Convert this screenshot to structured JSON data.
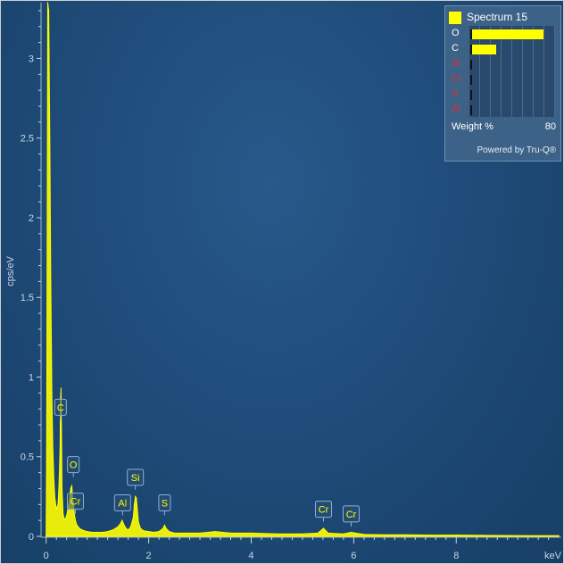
{
  "chart_data": {
    "type": "line",
    "xlabel": "keV",
    "ylabel": "cps/eV",
    "xlim": [
      -0.1,
      10.05
    ],
    "ylim": [
      0,
      3.35
    ],
    "x_ticks": [
      "0",
      "2",
      "4",
      "6",
      "8"
    ],
    "x_tick_values": [
      0,
      2,
      4,
      6,
      8
    ],
    "y_ticks": [
      "0",
      "0.5",
      "1",
      "1.5",
      "2",
      "2.5",
      "3"
    ],
    "y_tick_values": [
      0,
      0.5,
      1,
      1.5,
      2,
      2.5,
      3
    ],
    "series": [
      {
        "name": "Spectrum 15",
        "color": "#ffff00",
        "x": [
          0.0,
          0.01,
          0.03,
          0.05,
          0.07,
          0.09,
          0.11,
          0.13,
          0.15,
          0.17,
          0.2,
          0.23,
          0.25,
          0.27,
          0.28,
          0.29,
          0.3,
          0.31,
          0.33,
          0.36,
          0.4,
          0.44,
          0.48,
          0.5,
          0.52,
          0.53,
          0.55,
          0.57,
          0.6,
          0.65,
          0.7,
          0.75,
          0.8,
          0.9,
          1.0,
          1.1,
          1.2,
          1.3,
          1.4,
          1.45,
          1.48,
          1.52,
          1.56,
          1.6,
          1.65,
          1.7,
          1.72,
          1.74,
          1.76,
          1.78,
          1.8,
          1.84,
          1.9,
          2.0,
          2.1,
          2.2,
          2.28,
          2.31,
          2.34,
          2.4,
          2.5,
          2.7,
          3.0,
          3.3,
          3.6,
          4.0,
          4.5,
          5.0,
          5.3,
          5.41,
          5.5,
          5.8,
          5.95,
          6.2,
          6.6,
          7.0,
          7.5,
          8.0,
          8.5,
          9.0,
          9.5,
          10.0
        ],
        "y": [
          0.0,
          0.6,
          3.35,
          3.3,
          2.5,
          1.6,
          0.9,
          0.55,
          0.35,
          0.24,
          0.17,
          0.2,
          0.32,
          0.55,
          0.85,
          0.93,
          0.6,
          0.3,
          0.14,
          0.1,
          0.13,
          0.2,
          0.3,
          0.32,
          0.2,
          0.22,
          0.14,
          0.1,
          0.07,
          0.05,
          0.04,
          0.035,
          0.03,
          0.025,
          0.025,
          0.025,
          0.03,
          0.04,
          0.06,
          0.08,
          0.1,
          0.07,
          0.05,
          0.04,
          0.06,
          0.12,
          0.2,
          0.25,
          0.24,
          0.16,
          0.09,
          0.05,
          0.035,
          0.03,
          0.025,
          0.03,
          0.05,
          0.07,
          0.05,
          0.03,
          0.02,
          0.02,
          0.02,
          0.03,
          0.02,
          0.02,
          0.015,
          0.015,
          0.02,
          0.05,
          0.02,
          0.015,
          0.025,
          0.012,
          0.01,
          0.01,
          0.008,
          0.008,
          0.006,
          0.005,
          0.004,
          0.004
        ]
      }
    ],
    "annotations": [
      {
        "label": "C",
        "x": 0.28,
        "y": 0.76
      },
      {
        "label": "O",
        "x": 0.53,
        "y": 0.4
      },
      {
        "label": "Cr",
        "x": 0.57,
        "y": 0.17
      },
      {
        "label": "Al",
        "x": 1.49,
        "y": 0.16
      },
      {
        "label": "Si",
        "x": 1.74,
        "y": 0.32
      },
      {
        "label": "S",
        "x": 2.31,
        "y": 0.16
      },
      {
        "label": "Cr",
        "x": 5.41,
        "y": 0.12
      },
      {
        "label": "Cr",
        "x": 5.95,
        "y": 0.09
      }
    ]
  },
  "legend": {
    "title": "Spectrum 15",
    "swatch_color": "#ffff00",
    "items": [
      {
        "label": "O",
        "weight_pct": 70,
        "color": "#ffffff"
      },
      {
        "label": "C",
        "weight_pct": 25,
        "color": "#ffffff"
      },
      {
        "label": "Si",
        "weight_pct": 0,
        "color": "#e03030"
      },
      {
        "label": "Cr",
        "weight_pct": 0,
        "color": "#e03030"
      },
      {
        "label": "S",
        "weight_pct": 0,
        "color": "#e03030"
      },
      {
        "label": "Al",
        "weight_pct": 0,
        "color": "#e03030"
      }
    ],
    "axis_max": 80,
    "footer_label": "Weight %",
    "footer_value": "80",
    "powered_by": "Powered by Tru-Q®"
  }
}
